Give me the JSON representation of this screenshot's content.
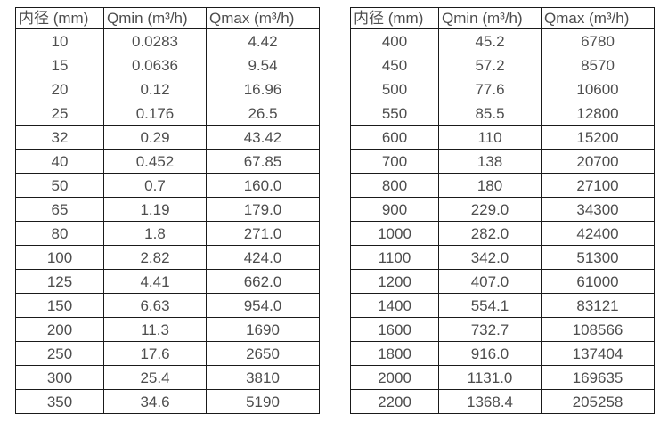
{
  "colors": {
    "background": "#ffffff",
    "text": "#4d4d4d",
    "border": "#1a1a1a"
  },
  "tables": [
    {
      "name": "flow-table-small-diameters",
      "headers": [
        "内径 (mm)",
        "Qmin (m³/h)",
        "Qmax (m³/h)"
      ],
      "rows": [
        [
          "10",
          "0.0283",
          "4.42"
        ],
        [
          "15",
          "0.0636",
          "9.54"
        ],
        [
          "20",
          "0.12",
          "16.96"
        ],
        [
          "25",
          "0.176",
          "26.5"
        ],
        [
          "32",
          "0.29",
          "43.42"
        ],
        [
          "40",
          "0.452",
          "67.85"
        ],
        [
          "50",
          "0.7",
          "160.0"
        ],
        [
          "65",
          "1.19",
          "179.0"
        ],
        [
          "80",
          "1.8",
          "271.0"
        ],
        [
          "100",
          "2.82",
          "424.0"
        ],
        [
          "125",
          "4.41",
          "662.0"
        ],
        [
          "150",
          "6.63",
          "954.0"
        ],
        [
          "200",
          "11.3",
          "1690"
        ],
        [
          "250",
          "17.6",
          "2650"
        ],
        [
          "300",
          "25.4",
          "3810"
        ],
        [
          "350",
          "34.6",
          "5190"
        ]
      ]
    },
    {
      "name": "flow-table-large-diameters",
      "headers": [
        "内径 (mm)",
        "Qmin (m³/h)",
        "Qmax (m³/h)"
      ],
      "rows": [
        [
          "400",
          "45.2",
          "6780"
        ],
        [
          "450",
          "57.2",
          "8570"
        ],
        [
          "500",
          "77.6",
          "10600"
        ],
        [
          "550",
          "85.5",
          "12800"
        ],
        [
          "600",
          "110",
          "15200"
        ],
        [
          "700",
          "138",
          "20700"
        ],
        [
          "800",
          "180",
          "27100"
        ],
        [
          "900",
          "229.0",
          "34300"
        ],
        [
          "1000",
          "282.0",
          "42400"
        ],
        [
          "1100",
          "342.0",
          "51300"
        ],
        [
          "1200",
          "407.0",
          "61000"
        ],
        [
          "1400",
          "554.1",
          "83121"
        ],
        [
          "1600",
          "732.7",
          "108566"
        ],
        [
          "1800",
          "916.0",
          "137404"
        ],
        [
          "2000",
          "1131.0",
          "169635"
        ],
        [
          "2200",
          "1368.4",
          "205258"
        ]
      ]
    }
  ]
}
